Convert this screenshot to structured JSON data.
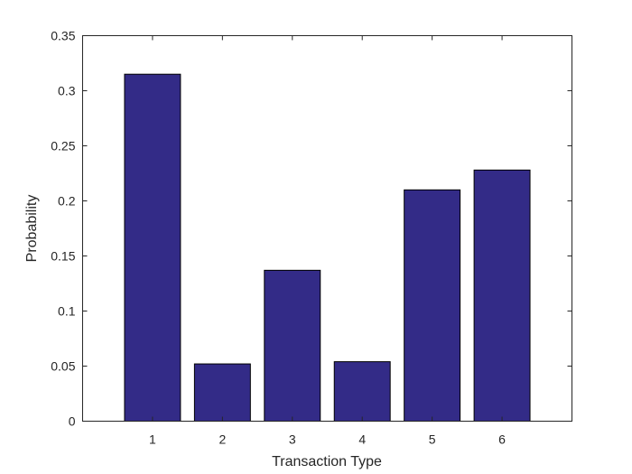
{
  "chart_data": {
    "type": "bar",
    "categories": [
      "1",
      "2",
      "3",
      "4",
      "5",
      "6"
    ],
    "values": [
      0.315,
      0.052,
      0.137,
      0.054,
      0.21,
      0.228
    ],
    "xlabel": "Transaction Type",
    "ylabel": "Probability",
    "ylim": [
      0,
      0.35
    ],
    "yticks": [
      "0",
      "0.05",
      "0.1",
      "0.15",
      "0.2",
      "0.25",
      "0.3",
      "0.35"
    ],
    "bar_color": "#332b87",
    "grid": false,
    "legend": "none"
  }
}
